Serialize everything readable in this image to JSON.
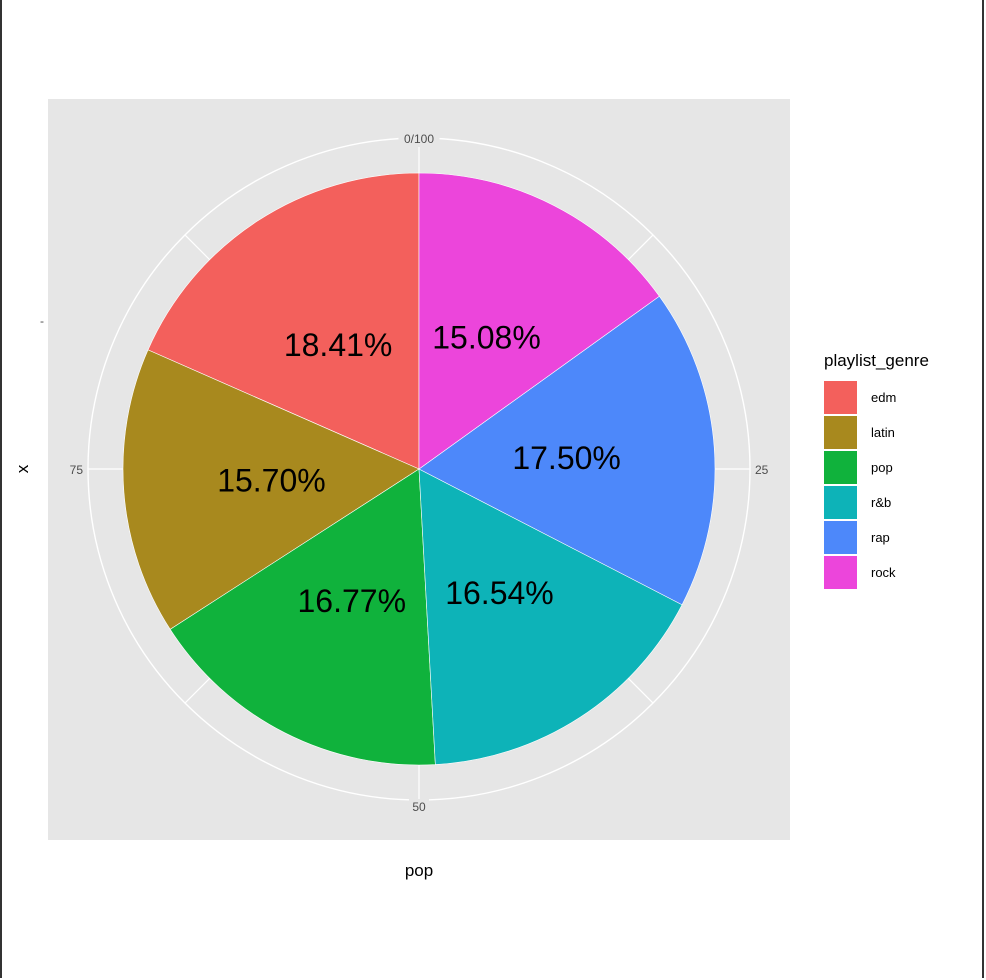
{
  "chart_data": {
    "type": "pie",
    "categories": [
      "edm",
      "latin",
      "pop",
      "r&b",
      "rap",
      "rock"
    ],
    "values": [
      18.41,
      15.7,
      16.77,
      16.54,
      17.5,
      15.08
    ],
    "labels": [
      "18.41%",
      "15.70%",
      "16.77%",
      "16.54%",
      "17.50%",
      "15.08%"
    ],
    "colors": [
      "#F3605C",
      "#A8891E",
      "#10B23C",
      "#0DB3B8",
      "#4D88FA",
      "#EC45DB"
    ],
    "xlabel": "pop",
    "ylabel": "x",
    "y_tick": "-",
    "angle_ticks": [
      "0/100",
      "25",
      "50",
      "75"
    ],
    "legend": {
      "title": "playlist_genre",
      "position": "right"
    },
    "panel_background": "#E6E6E6",
    "grid": true
  }
}
